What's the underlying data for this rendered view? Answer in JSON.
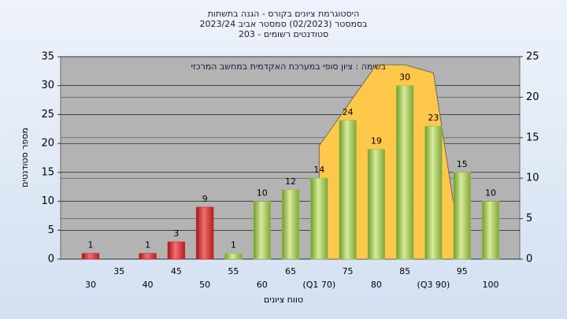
{
  "chart_data": {
    "type": "bar",
    "title": [
      "היסטוגרמת ציונים בקורס - הגנה בתשתות",
      "בסמסטר  (02/2023)  סמסטר אביב 2023/24",
      "סטודנטים רשומים - 203"
    ],
    "annotation": "בשימה : ציון סופי במערכת האקדמית במחשב המרכזי",
    "xlabel": "טווח ציונים",
    "ylabel": "מספר סטודנטים",
    "categories": [
      "30",
      "35",
      "40",
      "45",
      "50",
      "55",
      "60",
      "65",
      "(Q1 70)",
      "75",
      "80",
      "85",
      "(Q3 90)",
      "95",
      "100"
    ],
    "values": [
      1,
      null,
      1,
      3,
      9,
      1,
      10,
      12,
      14,
      24,
      19,
      30,
      23,
      15,
      10
    ],
    "colors": [
      "#d42a2a",
      "#d42a2a",
      "#d42a2a",
      "#d42a2a",
      "#d42a2a",
      "#9bc24a",
      "#9bc24a",
      "#9bc24a",
      "#9bc24a",
      "#9bc24a",
      "#9bc24a",
      "#9bc24a",
      "#9bc24a",
      "#9bc24a",
      "#9bc24a"
    ],
    "xlim": [
      30,
      100
    ],
    "ylim": [
      0,
      35
    ],
    "yticks": [
      0,
      5,
      10,
      15,
      20,
      25,
      30,
      35
    ],
    "y2lim": [
      0,
      25
    ],
    "y2ticks": [
      0,
      5,
      10,
      15,
      20,
      25
    ],
    "grid": true,
    "overlay": {
      "type": "area",
      "axis": "y2",
      "color": "#ffc84a",
      "x": [
        70,
        75,
        80,
        85,
        90,
        95
      ],
      "values": [
        14,
        19,
        24,
        24,
        23,
        0
      ]
    }
  }
}
